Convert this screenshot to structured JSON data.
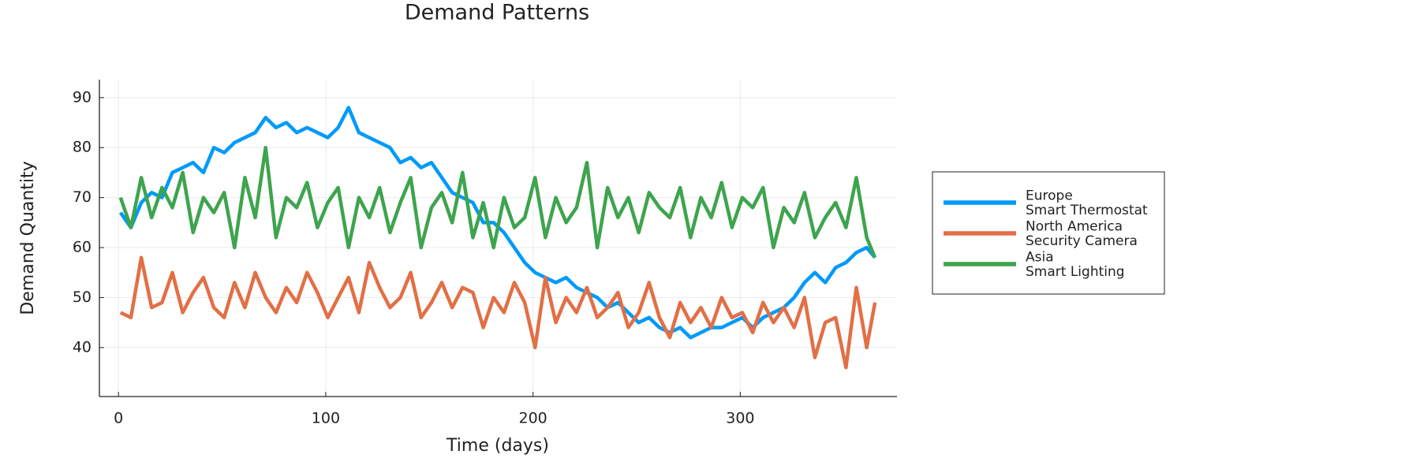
{
  "chart_data": {
    "type": "line",
    "title": "Demand Patterns",
    "x_label": "Time (days)",
    "y_label": "Demand Quantity",
    "x": [
      1,
      6,
      11,
      16,
      21,
      26,
      31,
      36,
      41,
      46,
      51,
      56,
      61,
      66,
      71,
      76,
      81,
      86,
      91,
      96,
      101,
      106,
      111,
      116,
      121,
      126,
      131,
      136,
      141,
      146,
      151,
      156,
      161,
      166,
      171,
      176,
      181,
      186,
      191,
      196,
      201,
      206,
      211,
      216,
      221,
      226,
      231,
      236,
      241,
      246,
      251,
      256,
      261,
      266,
      271,
      276,
      281,
      286,
      291,
      296,
      301,
      306,
      311,
      316,
      321,
      326,
      331,
      336,
      341,
      346,
      351,
      356,
      361,
      365
    ],
    "series": [
      {
        "name": "Europe\nSmart Thermostat",
        "color": "#009af9",
        "values": [
          67,
          64,
          69,
          71,
          70,
          75,
          76,
          77,
          75,
          80,
          79,
          81,
          82,
          83,
          86,
          84,
          85,
          83,
          84,
          83,
          82,
          84,
          88,
          83,
          82,
          81,
          80,
          77,
          78,
          76,
          77,
          74,
          71,
          70,
          69,
          65,
          65,
          63,
          60,
          57,
          55,
          54,
          53,
          54,
          52,
          51,
          50,
          48,
          49,
          47,
          45,
          46,
          44,
          43,
          44,
          42,
          43,
          44,
          44,
          45,
          46,
          44,
          46,
          47,
          48,
          50,
          53,
          55,
          53,
          56,
          57,
          59,
          60,
          58
        ]
      },
      {
        "name": "North America\nSecurity Camera",
        "color": "#e26f46",
        "values": [
          47,
          46,
          58,
          48,
          49,
          55,
          47,
          51,
          54,
          48,
          46,
          53,
          48,
          55,
          50,
          47,
          52,
          49,
          55,
          51,
          46,
          50,
          54,
          47,
          57,
          52,
          48,
          50,
          55,
          46,
          49,
          53,
          48,
          52,
          51,
          44,
          50,
          47,
          53,
          49,
          40,
          54,
          45,
          50,
          47,
          52,
          46,
          48,
          51,
          44,
          47,
          53,
          46,
          42,
          49,
          45,
          48,
          44,
          50,
          46,
          47,
          43,
          49,
          45,
          48,
          44,
          50,
          38,
          45,
          46,
          36,
          52,
          40,
          49
        ]
      },
      {
        "name": "Asia\nSmart Lighting",
        "color": "#3ea44e",
        "values": [
          70,
          64,
          74,
          66,
          72,
          68,
          75,
          63,
          70,
          67,
          71,
          60,
          74,
          66,
          80,
          62,
          70,
          68,
          73,
          64,
          69,
          72,
          60,
          70,
          66,
          72,
          63,
          69,
          74,
          60,
          68,
          71,
          65,
          75,
          62,
          69,
          60,
          70,
          64,
          66,
          74,
          62,
          70,
          65,
          68,
          77,
          60,
          72,
          66,
          70,
          63,
          71,
          68,
          66,
          72,
          62,
          70,
          66,
          73,
          64,
          70,
          68,
          72,
          60,
          68,
          65,
          71,
          62,
          66,
          69,
          64,
          74,
          62,
          58
        ]
      }
    ],
    "xlim": [
      -9.2,
      375.6
    ],
    "ylim": [
      30.2,
      93.6
    ],
    "xticks": [
      0,
      100,
      200,
      300
    ],
    "yticks": [
      40,
      50,
      60,
      70,
      80,
      90
    ],
    "grid": true,
    "legend": "right"
  }
}
